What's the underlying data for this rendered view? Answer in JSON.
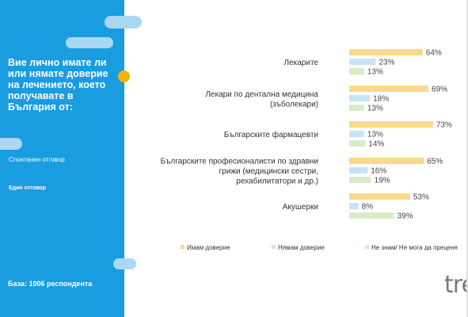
{
  "sidebar": {
    "question": "Вие лично имате ли или нямате доверие на лечението, което получавате в България от:",
    "note_spontaneous": "Спонтанен отговор",
    "note_single": "Един отговор",
    "base": "База: 1006 респондента",
    "accent_color": "#1a9ce0",
    "dot_color": "#f5b400"
  },
  "logo": {
    "text": "tre"
  },
  "chart_data": {
    "type": "bar",
    "orientation": "horizontal",
    "categories": [
      "Лекарите",
      "Лекари по дентална медицина (зъболекари)",
      "Българските фармацевти",
      "Българските професионалисти по здравни грижи (медицински сестри, рехабилитатори и др.)",
      "Акушерки"
    ],
    "category_lines": [
      [
        "Лекарите"
      ],
      [
        "Лекари по дентална медицина",
        "(зъболекари)"
      ],
      [
        "Българските фармацевти"
      ],
      [
        "Българските професионалисти по здравни",
        "грижи (медицински сестри,",
        "рехабилитатори и др.)"
      ],
      [
        "Акушерки"
      ]
    ],
    "series": [
      {
        "name": "Имам доверие",
        "color": "#fbd98a",
        "values": [
          64,
          69,
          73,
          65,
          53
        ],
        "labels": [
          "64%",
          "69%",
          "73%",
          "65%",
          "53%"
        ]
      },
      {
        "name": "Нямам доверие",
        "color": "#c6e4f5",
        "values": [
          23,
          18,
          13,
          16,
          8
        ],
        "labels": [
          "23%",
          "18%",
          "13%",
          "16%",
          "8%"
        ]
      },
      {
        "name": "Не знам/ Не мога да преценя",
        "color": "#d9ebc8",
        "values": [
          13,
          13,
          14,
          19,
          39
        ],
        "labels": [
          "13%",
          "13%",
          "14%",
          "19%",
          "39%"
        ]
      }
    ],
    "value_unit": "%",
    "xlim": [
      0,
      100
    ],
    "legend_position": "bottom",
    "grid": false
  }
}
